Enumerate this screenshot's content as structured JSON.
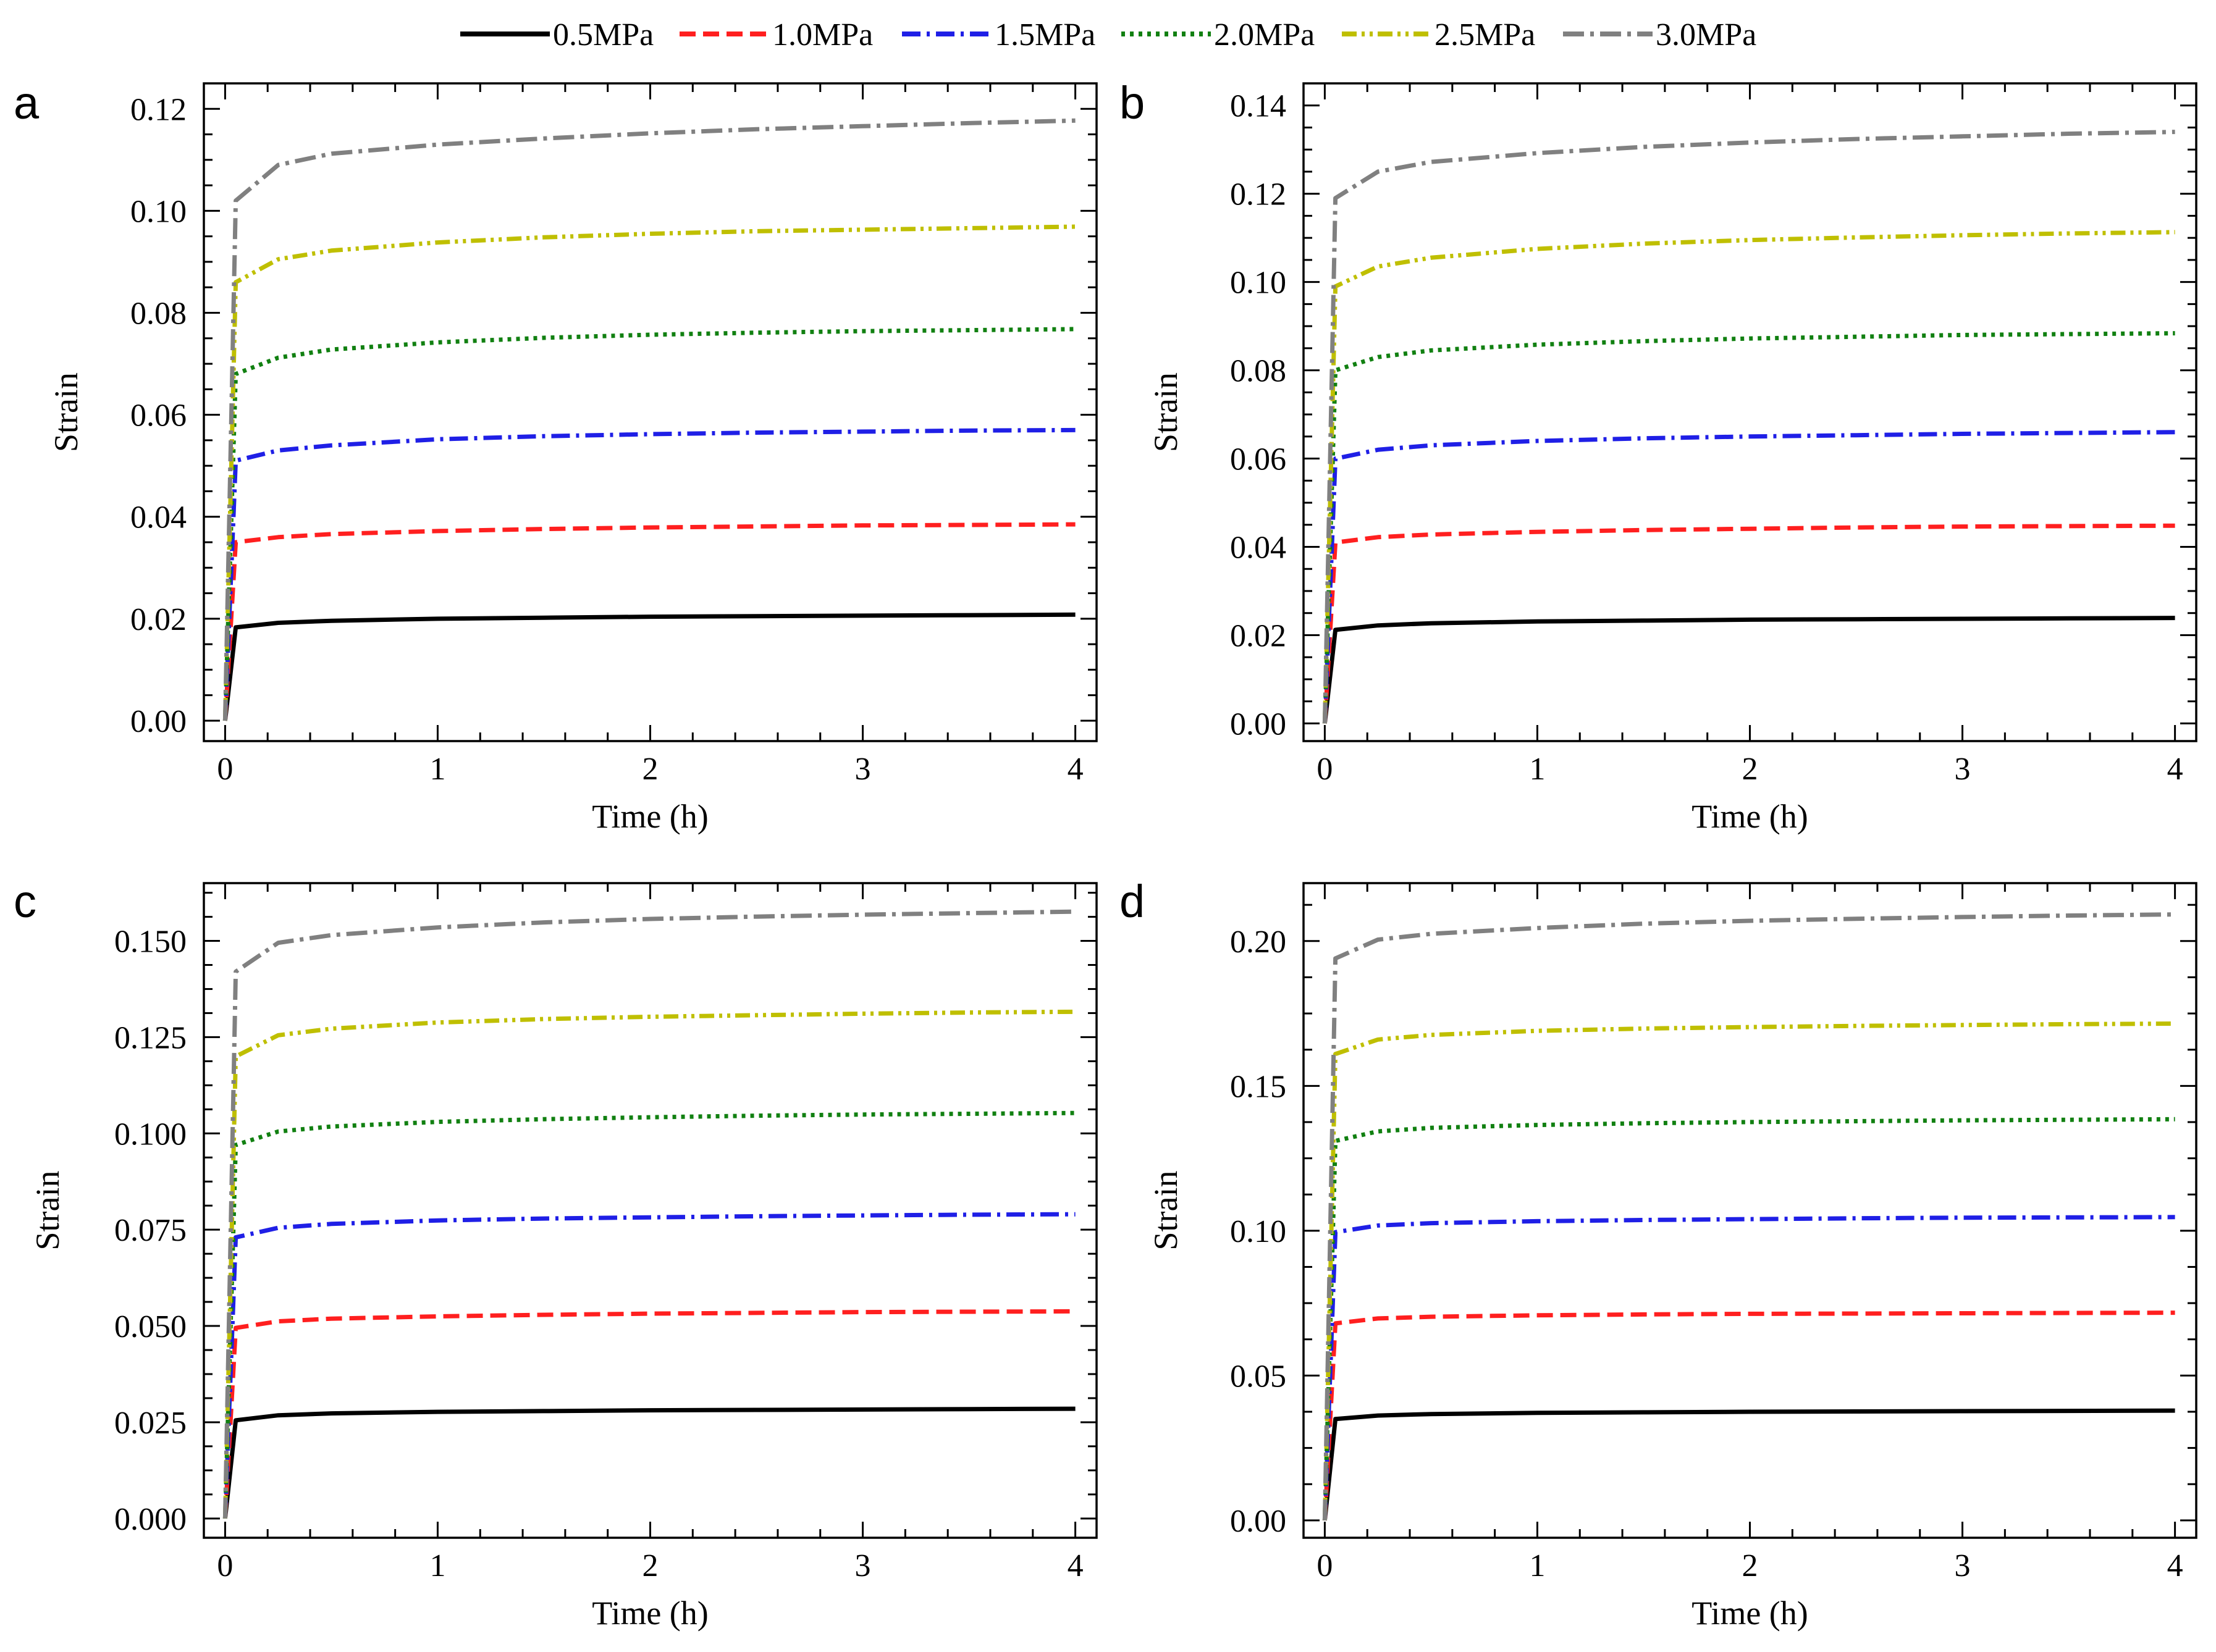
{
  "legend": {
    "placement": "top-center",
    "entries": [
      {
        "label": "0.5MPa",
        "color": "#000000",
        "dash": "solid"
      },
      {
        "label": "1.0MPa",
        "color": "#ff1f1f",
        "dash": "dashed"
      },
      {
        "label": "1.5MPa",
        "color": "#1f1fe6",
        "dash": "dashdot"
      },
      {
        "label": "2.0MPa",
        "color": "#118011",
        "dash": "dotted"
      },
      {
        "label": "2.5MPa",
        "color": "#bfbf00",
        "dash": "dashdotdot"
      },
      {
        "label": "3.0MPa",
        "color": "#808080",
        "dash": "dashdot-long"
      }
    ]
  },
  "chart_data": [
    {
      "panel": "a",
      "type": "line",
      "xlabel": "Time (h)",
      "ylabel": "Strain",
      "xlim": [
        -0.1,
        4.1
      ],
      "ylim": [
        -0.004,
        0.125
      ],
      "x_ticks": [
        0,
        1,
        2,
        3,
        4
      ],
      "y_ticks": [
        0.0,
        0.02,
        0.04,
        0.06,
        0.08,
        0.1,
        0.12
      ],
      "y_tick_labels": [
        "0.00",
        "0.02",
        "0.04",
        "0.06",
        "0.08",
        "0.10",
        "0.12"
      ],
      "x": [
        0,
        0.05,
        0.25,
        0.5,
        1,
        1.5,
        2,
        2.5,
        3,
        3.5,
        4
      ],
      "series": [
        {
          "name": "0.5MPa",
          "values": [
            0,
            0.0183,
            0.0192,
            0.0196,
            0.02,
            0.0202,
            0.0204,
            0.0205,
            0.0206,
            0.0207,
            0.0208
          ]
        },
        {
          "name": "1.0MPa",
          "values": [
            0,
            0.035,
            0.036,
            0.0366,
            0.0372,
            0.0376,
            0.0379,
            0.0381,
            0.0383,
            0.0384,
            0.0385
          ]
        },
        {
          "name": "1.5MPa",
          "values": [
            0,
            0.051,
            0.053,
            0.054,
            0.0552,
            0.0558,
            0.0562,
            0.0565,
            0.0567,
            0.0569,
            0.057
          ]
        },
        {
          "name": "2.0MPa",
          "values": [
            0,
            0.068,
            0.0712,
            0.0728,
            0.0742,
            0.0751,
            0.0757,
            0.0761,
            0.0764,
            0.0766,
            0.0768
          ]
        },
        {
          "name": "2.5MPa",
          "values": [
            0,
            0.086,
            0.0905,
            0.0922,
            0.0938,
            0.0948,
            0.0955,
            0.096,
            0.0963,
            0.0966,
            0.0969
          ]
        },
        {
          "name": "3.0MPa",
          "values": [
            0,
            0.102,
            0.109,
            0.1112,
            0.113,
            0.1142,
            0.1152,
            0.116,
            0.1166,
            0.1172,
            0.1177
          ]
        }
      ]
    },
    {
      "panel": "b",
      "type": "line",
      "xlabel": "Time (h)",
      "ylabel": "Strain",
      "xlim": [
        -0.1,
        4.1
      ],
      "ylim": [
        -0.004,
        0.145
      ],
      "x_ticks": [
        0,
        1,
        2,
        3,
        4
      ],
      "y_ticks": [
        0.0,
        0.02,
        0.04,
        0.06,
        0.08,
        0.1,
        0.12,
        0.14
      ],
      "y_tick_labels": [
        "0.00",
        "0.02",
        "0.04",
        "0.06",
        "0.08",
        "0.10",
        "0.12",
        "0.14"
      ],
      "x": [
        0,
        0.05,
        0.25,
        0.5,
        1,
        1.5,
        2,
        2.5,
        3,
        3.5,
        4
      ],
      "series": [
        {
          "name": "0.5MPa",
          "values": [
            0,
            0.0212,
            0.0222,
            0.0227,
            0.0231,
            0.0233,
            0.0235,
            0.0236,
            0.0237,
            0.0238,
            0.0239
          ]
        },
        {
          "name": "1.0MPa",
          "values": [
            0,
            0.041,
            0.0422,
            0.0428,
            0.0434,
            0.0438,
            0.0441,
            0.0444,
            0.0446,
            0.0447,
            0.0448
          ]
        },
        {
          "name": "1.5MPa",
          "values": [
            0,
            0.06,
            0.062,
            0.063,
            0.064,
            0.0646,
            0.065,
            0.0653,
            0.0656,
            0.0658,
            0.066
          ]
        },
        {
          "name": "2.0MPa",
          "values": [
            0,
            0.08,
            0.083,
            0.0845,
            0.0858,
            0.0866,
            0.0872,
            0.0876,
            0.088,
            0.0882,
            0.0884
          ]
        },
        {
          "name": "2.5MPa",
          "values": [
            0,
            0.099,
            0.1035,
            0.1055,
            0.1075,
            0.1087,
            0.1095,
            0.1101,
            0.1106,
            0.111,
            0.1113
          ]
        },
        {
          "name": "3.0MPa",
          "values": [
            0,
            0.119,
            0.125,
            0.1272,
            0.1292,
            0.1306,
            0.1316,
            0.1324,
            0.133,
            0.1336,
            0.134
          ]
        }
      ]
    },
    {
      "panel": "c",
      "type": "line",
      "xlabel": "Time (h)",
      "ylabel": "Strain",
      "xlim": [
        -0.1,
        4.1
      ],
      "ylim": [
        -0.005,
        0.165
      ],
      "x_ticks": [
        0,
        1,
        2,
        3,
        4
      ],
      "y_ticks": [
        0.0,
        0.025,
        0.05,
        0.075,
        0.1,
        0.125,
        0.15
      ],
      "y_tick_labels": [
        "0.000",
        "0.025",
        "0.050",
        "0.075",
        "0.100",
        "0.125",
        "0.150"
      ],
      "x": [
        0,
        0.05,
        0.25,
        0.5,
        1,
        1.5,
        2,
        2.5,
        3,
        3.5,
        4
      ],
      "series": [
        {
          "name": "0.5MPa",
          "values": [
            0,
            0.0255,
            0.0268,
            0.0273,
            0.0277,
            0.0279,
            0.0281,
            0.0282,
            0.0283,
            0.0284,
            0.0285
          ]
        },
        {
          "name": "1.0MPa",
          "values": [
            0,
            0.0495,
            0.0512,
            0.0519,
            0.0525,
            0.0529,
            0.0532,
            0.0534,
            0.0536,
            0.0537,
            0.0538
          ]
        },
        {
          "name": "1.5MPa",
          "values": [
            0,
            0.073,
            0.0755,
            0.0765,
            0.0774,
            0.0779,
            0.0782,
            0.0785,
            0.0787,
            0.0789,
            0.079
          ]
        },
        {
          "name": "2.0MPa",
          "values": [
            0,
            0.097,
            0.1005,
            0.1018,
            0.103,
            0.1037,
            0.1042,
            0.1046,
            0.1049,
            0.1051,
            0.1053
          ]
        },
        {
          "name": "2.5MPa",
          "values": [
            0,
            0.12,
            0.1255,
            0.1272,
            0.1288,
            0.1297,
            0.1303,
            0.1307,
            0.1311,
            0.1314,
            0.1316
          ]
        },
        {
          "name": "3.0MPa",
          "values": [
            0,
            0.142,
            0.1495,
            0.1515,
            0.1535,
            0.1548,
            0.1557,
            0.1563,
            0.1568,
            0.1572,
            0.1576
          ]
        }
      ]
    },
    {
      "panel": "d",
      "type": "line",
      "xlabel": "Time (h)",
      "ylabel": "Strain",
      "xlim": [
        -0.1,
        4.1
      ],
      "ylim": [
        -0.006,
        0.22
      ],
      "x_ticks": [
        0,
        1,
        2,
        3,
        4
      ],
      "y_ticks": [
        0.0,
        0.05,
        0.1,
        0.15,
        0.2
      ],
      "y_tick_labels": [
        "0.00",
        "0.05",
        "0.10",
        "0.15",
        "0.20"
      ],
      "x": [
        0,
        0.05,
        0.25,
        0.5,
        1,
        1.5,
        2,
        2.5,
        3,
        3.5,
        4
      ],
      "series": [
        {
          "name": "0.5MPa",
          "values": [
            0,
            0.035,
            0.0362,
            0.0367,
            0.0371,
            0.0373,
            0.0375,
            0.0376,
            0.0377,
            0.0378,
            0.0379
          ]
        },
        {
          "name": "1.0MPa",
          "values": [
            0,
            0.068,
            0.0697,
            0.0703,
            0.0708,
            0.0711,
            0.0713,
            0.0714,
            0.0715,
            0.0716,
            0.0717
          ]
        },
        {
          "name": "1.5MPa",
          "values": [
            0,
            0.0995,
            0.1018,
            0.1026,
            0.1033,
            0.1037,
            0.104,
            0.1043,
            0.1045,
            0.1046,
            0.1047
          ]
        },
        {
          "name": "2.0MPa",
          "values": [
            0,
            0.131,
            0.1343,
            0.1355,
            0.1365,
            0.1371,
            0.1375,
            0.1378,
            0.1381,
            0.1383,
            0.1385
          ]
        },
        {
          "name": "2.5MPa",
          "values": [
            0,
            0.161,
            0.166,
            0.1676,
            0.169,
            0.1698,
            0.1703,
            0.1707,
            0.171,
            0.1713,
            0.1715
          ]
        },
        {
          "name": "3.0MPa",
          "values": [
            0,
            0.194,
            0.2005,
            0.2025,
            0.2045,
            0.206,
            0.207,
            0.2077,
            0.2083,
            0.2088,
            0.2092
          ]
        }
      ]
    }
  ]
}
